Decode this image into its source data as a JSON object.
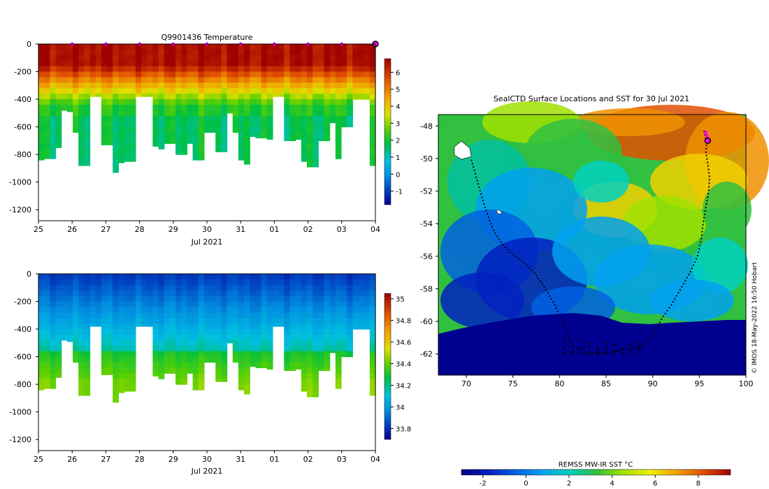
{
  "charts": {
    "temperature": {
      "title": "Q9901436  Temperature",
      "xlabel": "Jul 2021",
      "x_ticks": [
        "25",
        "26",
        "27",
        "28",
        "29",
        "30",
        "31",
        "01",
        "02",
        "03",
        "04"
      ],
      "y_ticks": [
        "0",
        "-200",
        "-400",
        "-600",
        "-800",
        "-1000",
        "-1200"
      ],
      "colorbar_ticks": [
        "6",
        "5",
        "4",
        "3",
        "2",
        "1",
        "0",
        "-1"
      ],
      "colorbar_colors": [
        "#b00000",
        "#f04000",
        "#f09000",
        "#f0d000",
        "#c8f000",
        "#40d000",
        "#00c030",
        "#00c0a0",
        "#00b0e0",
        "#0080e0",
        "#0040c0",
        "#000090"
      ]
    },
    "salinity": {
      "title": "",
      "xlabel": "Jul 2021",
      "x_ticks": [
        "25",
        "26",
        "27",
        "28",
        "29",
        "30",
        "31",
        "01",
        "02",
        "03",
        "04"
      ],
      "y_ticks": [
        "0",
        "-200",
        "-400",
        "-600",
        "-800",
        "-1000",
        "-1200"
      ],
      "colorbar_ticks": [
        "35",
        "34.8",
        "34.6",
        "34.4",
        "34.2",
        "34",
        "33.8"
      ],
      "colorbar_colors": [
        "#b00000",
        "#f04000",
        "#f09000",
        "#f0d000",
        "#c8f000",
        "#40d000",
        "#00c030",
        "#00c0a0",
        "#00b0e0",
        "#0080e0",
        "#0040c0",
        "#000090"
      ]
    },
    "map": {
      "title": "SealCTD Surface Locations and SST for 30 Jul 2021",
      "x_ticks": [
        "70",
        "75",
        "80",
        "85",
        "90",
        "95",
        "100"
      ],
      "y_ticks": [
        "-48",
        "-50",
        "-52",
        "-54",
        "-56",
        "-58",
        "-60",
        "-62"
      ],
      "colorbar_title": "REMSS MW-IR SST °C",
      "colorbar_ticks": [
        "-2",
        "0",
        "2",
        "4",
        "6",
        "8"
      ],
      "credit": "© IMOS 18-May-2022 16:50 Hobart",
      "colorbar_colors": [
        "#000080",
        "#0020c0",
        "#0060e0",
        "#00a0f0",
        "#00d0c0",
        "#30c040",
        "#a0e000",
        "#f0f000",
        "#f0a000",
        "#e05000",
        "#a00000"
      ]
    }
  },
  "chart_data": [
    {
      "type": "heatmap",
      "title": "Q9901436  Temperature",
      "xlabel": "Jul 2021",
      "ylabel": "",
      "xlim": [
        25,
        35
      ],
      "ylim": [
        -1280,
        0
      ],
      "colorbar_range": [
        -1.8,
        6.8
      ],
      "surface_markers_day": [
        26,
        27,
        28,
        29,
        30,
        31,
        32,
        33,
        34
      ],
      "last_profile_day": 35,
      "profile_max_depths": [
        840,
        830,
        830,
        750,
        480,
        490,
        640,
        880,
        880,
        380,
        380,
        730,
        730,
        930,
        860,
        850,
        850,
        380,
        380,
        380,
        740,
        760,
        720,
        720,
        800,
        800,
        720,
        840,
        840,
        640,
        640,
        780,
        780,
        500,
        640,
        840,
        870,
        670,
        680,
        680,
        690,
        380,
        380,
        700,
        700,
        690,
        850,
        890,
        890,
        700,
        700,
        570,
        830,
        600,
        600,
        400,
        400,
        400,
        880
      ]
    },
    {
      "type": "heatmap",
      "title": "",
      "xlabel": "Jul 2021",
      "ylabel": "",
      "xlim": [
        25,
        35
      ],
      "ylim": [
        -1280,
        0
      ],
      "colorbar_range": [
        33.7,
        35.05
      ],
      "profile_max_depths": [
        840,
        830,
        830,
        750,
        480,
        490,
        640,
        880,
        880,
        380,
        380,
        730,
        730,
        930,
        860,
        850,
        850,
        380,
        380,
        380,
        740,
        760,
        720,
        720,
        800,
        800,
        720,
        840,
        840,
        640,
        640,
        780,
        780,
        500,
        640,
        840,
        870,
        670,
        680,
        680,
        690,
        380,
        380,
        700,
        700,
        690,
        850,
        890,
        890,
        700,
        700,
        570,
        830,
        600,
        600,
        400,
        400,
        400,
        880
      ]
    },
    {
      "type": "heatmap",
      "title": "SealCTD Surface Locations and SST for 30 Jul 2021",
      "xlabel": "",
      "ylabel": "",
      "xlim": [
        67,
        100
      ],
      "ylim": [
        -63.3,
        -47.3
      ],
      "colorbar_label": "REMSS MW-IR SST °C",
      "colorbar_range": [
        -3,
        9.5
      ],
      "track": [
        [
          95.5,
          -48.3
        ],
        [
          95.8,
          -49.0
        ],
        [
          95.7,
          -49.6
        ],
        [
          95.9,
          -50.3
        ],
        [
          96.1,
          -51.2
        ],
        [
          96.0,
          -52.0
        ],
        [
          95.7,
          -53.0
        ],
        [
          95.4,
          -54.0
        ],
        [
          95.2,
          -55.0
        ],
        [
          94.8,
          -56.0
        ],
        [
          94.0,
          -57.0
        ],
        [
          93.0,
          -58.0
        ],
        [
          92.0,
          -59.0
        ],
        [
          91.0,
          -59.8
        ],
        [
          90.2,
          -60.6
        ],
        [
          89.5,
          -61.3
        ],
        [
          88.5,
          -61.6
        ],
        [
          87.0,
          -61.7
        ],
        [
          85.5,
          -61.9
        ],
        [
          84.0,
          -62.0
        ],
        [
          82.5,
          -61.9
        ],
        [
          81.5,
          -61.5
        ],
        [
          81.0,
          -61.0
        ],
        [
          80.3,
          -60.0
        ],
        [
          79.5,
          -59.0
        ],
        [
          78.5,
          -58.0
        ],
        [
          77.3,
          -57.0
        ],
        [
          76.0,
          -56.3
        ],
        [
          74.8,
          -55.8
        ],
        [
          73.8,
          -55.2
        ],
        [
          73.0,
          -54.5
        ],
        [
          72.5,
          -53.8
        ],
        [
          72.0,
          -53.0
        ],
        [
          71.5,
          -52.0
        ],
        [
          71.0,
          -51.0
        ],
        [
          70.5,
          -50.0
        ]
      ],
      "current_position": [
        95.9,
        -48.9
      ],
      "recent_positions": [
        [
          95.7,
          -48.4
        ],
        [
          95.8,
          -48.6
        ],
        [
          95.9,
          -48.8
        ]
      ]
    }
  ]
}
